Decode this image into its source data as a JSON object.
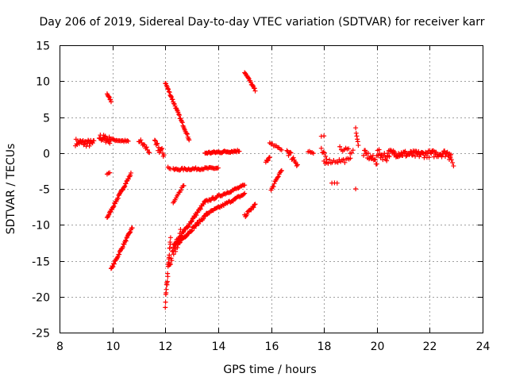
{
  "chart_data": {
    "type": "scatter",
    "title": "Day 206 of 2019, Sidereal Day-to-day VTEC variation (SDTVAR) for receiver karr",
    "xlabel": "GPS time / hours",
    "ylabel": "SDTVAR / TECUs",
    "xlim": [
      8,
      24
    ],
    "ylim": [
      -25,
      15
    ],
    "xticks": [
      "8",
      "10",
      "12",
      "14",
      "16",
      "18",
      "20",
      "22",
      "24"
    ],
    "yticks": [
      "15",
      "10",
      "5",
      "0",
      "-5",
      "-10",
      "-15",
      "-20",
      "-25"
    ],
    "grid": true,
    "marker": "+",
    "color": "#ff0000",
    "segments": [
      {
        "x0": 8.6,
        "y0": 1.5,
        "x1": 9.3,
        "y1": 1.3,
        "n": 30,
        "spread": 1.0
      },
      {
        "x0": 9.5,
        "y0": 2.2,
        "x1": 9.9,
        "y1": 1.8,
        "n": 20,
        "spread": 1.0
      },
      {
        "x0": 9.9,
        "y0": 1.9,
        "x1": 10.6,
        "y1": 1.6,
        "n": 18,
        "spread": 0.3
      },
      {
        "x0": 9.8,
        "y0": 8.2,
        "x1": 9.95,
        "y1": 7.2,
        "n": 8,
        "spread": 0.3
      },
      {
        "x0": 9.8,
        "y0": -9.0,
        "x1": 10.7,
        "y1": -2.9,
        "n": 40,
        "spread": 0.3
      },
      {
        "x0": 9.8,
        "y0": -2.9,
        "x1": 9.9,
        "y1": -2.7,
        "n": 3,
        "spread": 0.1
      },
      {
        "x0": 9.95,
        "y0": -16.2,
        "x1": 10.75,
        "y1": -10.4,
        "n": 35,
        "spread": 0.3
      },
      {
        "x0": 11.0,
        "y0": 1.8,
        "x1": 11.4,
        "y1": 0.2,
        "n": 12,
        "spread": 0.8
      },
      {
        "x0": 11.6,
        "y0": 1.2,
        "x1": 11.95,
        "y1": -0.2,
        "n": 15,
        "spread": 1.2
      },
      {
        "x0": 12.0,
        "y0": 9.8,
        "x1": 12.9,
        "y1": 1.9,
        "n": 40,
        "spread": 0.3
      },
      {
        "x0": 12.1,
        "y0": -2.0,
        "x1": 12.2,
        "y1": -2.2,
        "n": 3,
        "spread": 0.2
      },
      {
        "x0": 12.3,
        "y0": -2.3,
        "x1": 14.0,
        "y1": -2.1,
        "n": 45,
        "spread": 0.3
      },
      {
        "x0": 12.3,
        "y0": -7.0,
        "x1": 12.7,
        "y1": -4.5,
        "n": 12,
        "spread": 0.3
      },
      {
        "x0": 12.0,
        "y0": -21.0,
        "x1": 12.2,
        "y1": -12.0,
        "n": 22,
        "spread": 1.2
      },
      {
        "x0": 12.15,
        "y0": -15.5,
        "x1": 12.6,
        "y1": -11.0,
        "n": 20,
        "spread": 1.5
      },
      {
        "x0": 12.3,
        "y0": -13.0,
        "x1": 13.5,
        "y1": -6.8,
        "n": 45,
        "spread": 0.4
      },
      {
        "x0": 13.5,
        "y0": -6.8,
        "x1": 15.0,
        "y1": -4.5,
        "n": 40,
        "spread": 0.3
      },
      {
        "x0": 12.5,
        "y0": -12.5,
        "x1": 13.6,
        "y1": -8.4,
        "n": 40,
        "spread": 0.4
      },
      {
        "x0": 13.6,
        "y0": -8.4,
        "x1": 15.0,
        "y1": -5.7,
        "n": 40,
        "spread": 0.3
      },
      {
        "x0": 13.5,
        "y0": 0.0,
        "x1": 14.8,
        "y1": 0.3,
        "n": 40,
        "spread": 0.3
      },
      {
        "x0": 15.0,
        "y0": 11.3,
        "x1": 15.4,
        "y1": 8.7,
        "n": 18,
        "spread": 0.3
      },
      {
        "x0": 15.0,
        "y0": -8.8,
        "x1": 15.4,
        "y1": -7.2,
        "n": 14,
        "spread": 0.4
      },
      {
        "x0": 15.8,
        "y0": -1.3,
        "x1": 15.95,
        "y1": -0.6,
        "n": 6,
        "spread": 0.3
      },
      {
        "x0": 16.0,
        "y0": -5.2,
        "x1": 16.4,
        "y1": -2.3,
        "n": 14,
        "spread": 0.3
      },
      {
        "x0": 15.95,
        "y0": 1.3,
        "x1": 16.4,
        "y1": 0.5,
        "n": 10,
        "spread": 0.3
      },
      {
        "x0": 16.6,
        "y0": 0.4,
        "x1": 17.0,
        "y1": -1.5,
        "n": 14,
        "spread": 1.0
      },
      {
        "x0": 17.4,
        "y0": 0.2,
        "x1": 17.6,
        "y1": 0.0,
        "n": 5,
        "spread": 0.6
      },
      {
        "x0": 17.9,
        "y0": 2.3,
        "x1": 18.0,
        "y1": 2.3,
        "n": 2,
        "spread": 0.2
      },
      {
        "x0": 17.9,
        "y0": 0.3,
        "x1": 18.1,
        "y1": -0.8,
        "n": 6,
        "spread": 0.8
      },
      {
        "x0": 18.0,
        "y0": -1.2,
        "x1": 19.0,
        "y1": -1.0,
        "n": 20,
        "spread": 0.6
      },
      {
        "x0": 18.3,
        "y0": -4.1,
        "x1": 18.5,
        "y1": -4.1,
        "n": 3,
        "spread": 0.2
      },
      {
        "x0": 18.6,
        "y0": 0.5,
        "x1": 19.1,
        "y1": 0.3,
        "n": 10,
        "spread": 0.8
      },
      {
        "x0": 19.2,
        "y0": 3.4,
        "x1": 19.3,
        "y1": 1.0,
        "n": 6,
        "spread": 0.4
      },
      {
        "x0": 19.2,
        "y0": -5.0,
        "x1": 19.2,
        "y1": -5.0,
        "n": 1,
        "spread": 0.0
      },
      {
        "x0": 19.5,
        "y0": 0.0,
        "x1": 20.0,
        "y1": -1.2,
        "n": 18,
        "spread": 1.0
      },
      {
        "x0": 20.0,
        "y0": 0.0,
        "x1": 20.4,
        "y1": -0.6,
        "n": 15,
        "spread": 1.2
      },
      {
        "x0": 20.4,
        "y0": 0.0,
        "x1": 21.5,
        "y1": -0.2,
        "n": 45,
        "spread": 1.0
      },
      {
        "x0": 21.5,
        "y0": -0.2,
        "x1": 22.8,
        "y1": 0.0,
        "n": 50,
        "spread": 1.0
      },
      {
        "x0": 22.7,
        "y0": -0.5,
        "x1": 22.9,
        "y1": -1.6,
        "n": 6,
        "spread": 0.6
      }
    ]
  }
}
